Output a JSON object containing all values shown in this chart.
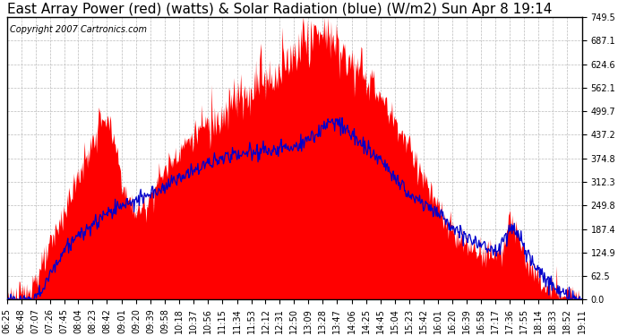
{
  "title": "East Array Power (red) (watts) & Solar Radiation (blue) (W/m2) Sun Apr 8 19:14",
  "copyright": "Copyright 2007 Cartronics.com",
  "ylabel_right_values": [
    0.0,
    62.5,
    124.9,
    187.4,
    249.8,
    312.3,
    374.8,
    437.2,
    499.7,
    562.1,
    624.6,
    687.1,
    749.5
  ],
  "ylim": [
    0,
    749.5
  ],
  "red_fill_color": "#FF0000",
  "blue_line_color": "#0000CC",
  "background_color": "#FFFFFF",
  "grid_color": "#BBBBBB",
  "x_tick_labels": [
    "06:25",
    "06:48",
    "07:07",
    "07:26",
    "07:45",
    "08:04",
    "08:23",
    "08:42",
    "09:01",
    "09:20",
    "09:39",
    "09:58",
    "10:18",
    "10:37",
    "10:56",
    "11:15",
    "11:34",
    "11:53",
    "12:12",
    "12:31",
    "12:50",
    "13:09",
    "13:28",
    "13:47",
    "14:06",
    "14:25",
    "14:45",
    "15:04",
    "15:23",
    "15:42",
    "16:01",
    "16:20",
    "16:39",
    "16:58",
    "17:17",
    "17:36",
    "17:55",
    "18:14",
    "18:33",
    "18:52",
    "19:11"
  ],
  "title_fontsize": 11,
  "copyright_fontsize": 7,
  "tick_fontsize": 7
}
